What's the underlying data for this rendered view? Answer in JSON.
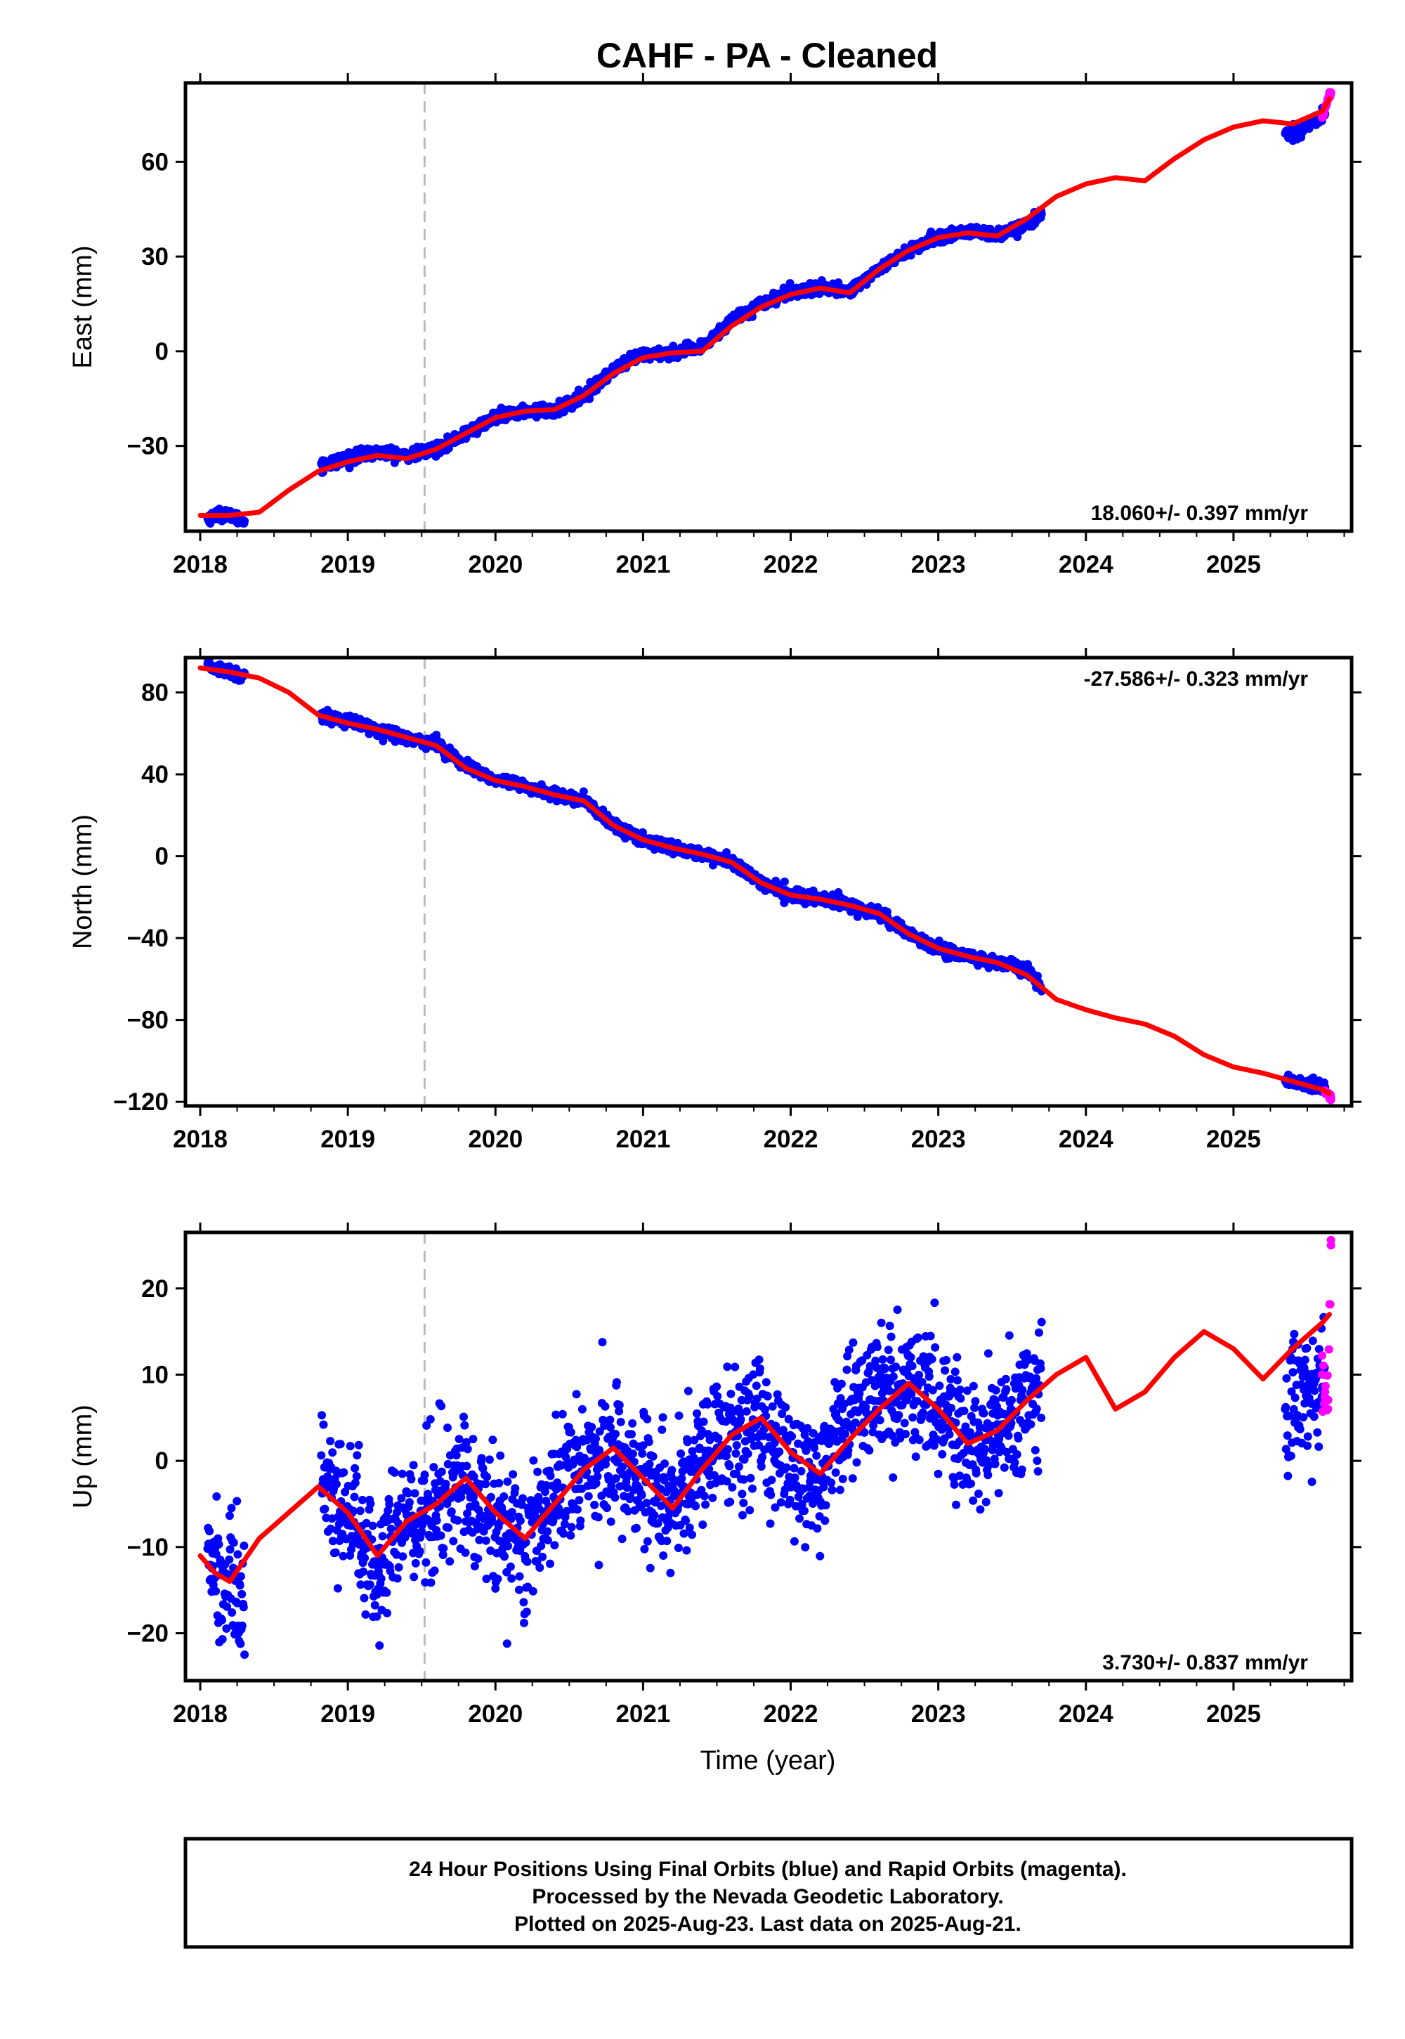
{
  "title": "CAHF  - PA - Cleaned",
  "xlabel": "Time (year)",
  "footer": [
    "24 Hour Positions Using Final Orbits (blue) and Rapid Orbits (magenta).",
    "Processed by the Nevada Geodetic Laboratory.",
    "Plotted on 2025-Aug-23. Last data on 2025-Aug-21."
  ],
  "colors": {
    "final_orbits": "#0000ff",
    "rapid_orbits": "#ff00ff",
    "model": "#ff0000",
    "step_marker": "#bbbbbb"
  },
  "chart_data": [
    {
      "type": "scatter",
      "panel": "east",
      "ylabel": "East (mm)",
      "xlim": [
        2017.9,
        2025.8
      ],
      "ylim": [
        -57,
        85
      ],
      "xticks": [
        "2018",
        "2019",
        "2020",
        "2021",
        "2022",
        "2023",
        "2024",
        "2025"
      ],
      "yticks": [
        "−30",
        "0",
        "30",
        "60"
      ],
      "ytick_values": [
        -30,
        0,
        30,
        60
      ],
      "rate_label": "18.060+/- 0.397 mm/yr",
      "rate_position": "bottom-right",
      "step_epoch": 2019.52,
      "grid": false,
      "final_orbits_segments": [
        {
          "x": [
            2018.05,
            2018.1,
            2018.15,
            2018.2,
            2018.25,
            2018.3
          ],
          "y": [
            -53,
            -52,
            -51.5,
            -52,
            -53,
            -54
          ]
        },
        {
          "x": [
            2018.82,
            2019.0,
            2019.2,
            2019.4,
            2019.6,
            2019.8,
            2020.0,
            2020.2,
            2020.4,
            2020.6,
            2020.8,
            2021.0,
            2021.2,
            2021.4,
            2021.6,
            2021.8,
            2022.0,
            2022.2,
            2022.4,
            2022.6,
            2022.8,
            2023.0,
            2023.2,
            2023.4,
            2023.6,
            2023.7
          ],
          "y": [
            -36,
            -34,
            -32,
            -33,
            -31,
            -26,
            -21,
            -19,
            -19,
            -14,
            -6,
            -1,
            -0.5,
            1,
            10,
            15,
            19,
            20,
            19,
            26,
            32,
            36,
            38,
            37,
            40,
            44
          ]
        },
        {
          "x": [
            2025.35,
            2025.45,
            2025.55,
            2025.62
          ],
          "y": [
            69,
            70,
            73,
            75
          ]
        }
      ],
      "rapid_orbits": {
        "x": [
          2025.6,
          2025.62,
          2025.64,
          2025.66
        ],
        "y": [
          74,
          77,
          80,
          82
        ]
      },
      "model": {
        "x": [
          2018.0,
          2018.2,
          2018.4,
          2018.6,
          2018.8,
          2019.0,
          2019.2,
          2019.4,
          2019.6,
          2019.8,
          2020.0,
          2020.2,
          2020.4,
          2020.6,
          2020.8,
          2021.0,
          2021.2,
          2021.4,
          2021.6,
          2021.8,
          2022.0,
          2022.2,
          2022.4,
          2022.6,
          2022.8,
          2023.0,
          2023.2,
          2023.4,
          2023.6,
          2023.8,
          2024.0,
          2024.2,
          2024.4,
          2024.6,
          2024.8,
          2025.0,
          2025.2,
          2025.4,
          2025.6,
          2025.65
        ],
        "y": [
          -52,
          -52,
          -51,
          -44,
          -38,
          -35,
          -33,
          -34,
          -31,
          -26,
          -21,
          -19,
          -18.5,
          -14,
          -7,
          -2,
          -0.5,
          0,
          8,
          14,
          18,
          20,
          18.5,
          26,
          32,
          36,
          37.5,
          36.5,
          42,
          49,
          53,
          55,
          54,
          61,
          67,
          71,
          73,
          72,
          76,
          80
        ]
      }
    },
    {
      "type": "scatter",
      "panel": "north",
      "ylabel": "North (mm)",
      "xlim": [
        2017.9,
        2025.8
      ],
      "ylim": [
        -122,
        97
      ],
      "xticks": [
        "2018",
        "2019",
        "2020",
        "2021",
        "2022",
        "2023",
        "2024",
        "2025"
      ],
      "yticks": [
        "−120",
        "−80",
        "−40",
        "0",
        "40",
        "80"
      ],
      "ytick_values": [
        -120,
        -80,
        -40,
        0,
        40,
        80
      ],
      "rate_label": "-27.586+/- 0.323 mm/yr",
      "rate_position": "top-right",
      "step_epoch": 2019.52,
      "grid": false,
      "final_orbits_segments": [
        {
          "x": [
            2018.05,
            2018.1,
            2018.15,
            2018.2,
            2018.25,
            2018.3
          ],
          "y": [
            93,
            92,
            91,
            90,
            89,
            88
          ]
        },
        {
          "x": [
            2018.82,
            2019.0,
            2019.2,
            2019.4,
            2019.6,
            2019.8,
            2020.0,
            2020.2,
            2020.4,
            2020.6,
            2020.8,
            2021.0,
            2021.2,
            2021.4,
            2021.6,
            2021.8,
            2022.0,
            2022.2,
            2022.4,
            2022.6,
            2022.8,
            2023.0,
            2023.2,
            2023.4,
            2023.6,
            2023.7
          ],
          "y": [
            69,
            66,
            62,
            58,
            55,
            44,
            37,
            34,
            30,
            27,
            15,
            8,
            4,
            1,
            -3,
            -13,
            -19,
            -21,
            -24,
            -28,
            -38,
            -45,
            -49,
            -52,
            -55,
            -64
          ]
        },
        {
          "x": [
            2025.35,
            2025.45,
            2025.55,
            2025.62
          ],
          "y": [
            -109,
            -111,
            -112,
            -114
          ]
        }
      ],
      "rapid_orbits": {
        "x": [
          2025.62,
          2025.64,
          2025.66
        ],
        "y": [
          -115,
          -116,
          -118
        ]
      },
      "model": {
        "x": [
          2018.0,
          2018.2,
          2018.4,
          2018.6,
          2018.8,
          2019.0,
          2019.2,
          2019.4,
          2019.6,
          2019.8,
          2020.0,
          2020.2,
          2020.4,
          2020.6,
          2020.8,
          2021.0,
          2021.2,
          2021.4,
          2021.6,
          2021.8,
          2022.0,
          2022.2,
          2022.4,
          2022.6,
          2022.8,
          2023.0,
          2023.2,
          2023.4,
          2023.6,
          2023.8,
          2024.0,
          2024.2,
          2024.4,
          2024.6,
          2024.8,
          2025.0,
          2025.2,
          2025.4,
          2025.6,
          2025.65
        ],
        "y": [
          92,
          90,
          87,
          80,
          69,
          65,
          62,
          58,
          54,
          43,
          37,
          34,
          30,
          27,
          15,
          8,
          4,
          1,
          -3,
          -13,
          -19,
          -21,
          -24,
          -28,
          -38,
          -45,
          -49,
          -52,
          -58,
          -70,
          -75,
          -79,
          -82,
          -88,
          -97,
          -103,
          -106,
          -110,
          -114,
          -116
        ]
      }
    },
    {
      "type": "scatter",
      "panel": "up",
      "ylabel": "Up (mm)",
      "xlim": [
        2017.9,
        2025.8
      ],
      "ylim": [
        -25.5,
        26.5
      ],
      "xticks": [
        "2018",
        "2019",
        "2020",
        "2021",
        "2022",
        "2023",
        "2024",
        "2025"
      ],
      "yticks": [
        "−20",
        "−10",
        "0",
        "10",
        "20"
      ],
      "ytick_values": [
        -20,
        -10,
        0,
        10,
        20
      ],
      "rate_label": "3.730+/- 0.837 mm/yr",
      "rate_position": "bottom-right",
      "step_epoch": 2019.52,
      "grid": false,
      "final_orbits_segments": [
        {
          "x": [
            2018.05,
            2018.1,
            2018.15,
            2018.2,
            2018.25,
            2018.3
          ],
          "y": [
            -11,
            -13,
            -14,
            -13,
            -15,
            -16
          ]
        },
        {
          "x": [
            2018.82,
            2019.0,
            2019.2,
            2019.4,
            2019.6,
            2019.8,
            2020.0,
            2020.2,
            2020.4,
            2020.6,
            2020.8,
            2021.0,
            2021.2,
            2021.4,
            2021.6,
            2021.8,
            2022.0,
            2022.2,
            2022.4,
            2022.6,
            2022.8,
            2023.0,
            2023.2,
            2023.4,
            2023.6,
            2023.7
          ],
          "y": [
            -2,
            -7,
            -12,
            -7,
            -5,
            -3,
            -7,
            -9,
            -4,
            -1,
            1,
            -3,
            -5,
            0,
            3,
            4,
            0,
            -2,
            5,
            8,
            9,
            6,
            2,
            4,
            7,
            8
          ]
        },
        {
          "x": [
            2025.35,
            2025.45,
            2025.55,
            2025.62
          ],
          "y": [
            7,
            8,
            9,
            10
          ]
        }
      ],
      "rapid_orbits": {
        "x": [
          2025.6,
          2025.62,
          2025.64,
          2025.66
        ],
        "y": [
          10,
          8,
          6,
          25
        ]
      },
      "model": {
        "x": [
          2018.0,
          2018.1,
          2018.2,
          2018.4,
          2018.6,
          2018.8,
          2019.0,
          2019.2,
          2019.4,
          2019.6,
          2019.8,
          2020.0,
          2020.2,
          2020.4,
          2020.6,
          2020.8,
          2021.0,
          2021.2,
          2021.4,
          2021.6,
          2021.8,
          2022.0,
          2022.2,
          2022.4,
          2022.6,
          2022.8,
          2023.0,
          2023.2,
          2023.4,
          2023.6,
          2023.8,
          2024.0,
          2024.2,
          2024.4,
          2024.6,
          2024.8,
          2025.0,
          2025.2,
          2025.4,
          2025.6,
          2025.65
        ],
        "y": [
          -11,
          -13,
          -14,
          -9,
          -6,
          -3,
          -6,
          -11,
          -7,
          -5,
          -2,
          -6,
          -9,
          -5,
          -1,
          1.5,
          -2,
          -5.5,
          -1,
          3,
          5,
          1,
          -1.5,
          2.5,
          6,
          9,
          6,
          2,
          3.5,
          7,
          10,
          12,
          6,
          8,
          12,
          15,
          13,
          9.5,
          13,
          16,
          17
        ]
      }
    }
  ]
}
